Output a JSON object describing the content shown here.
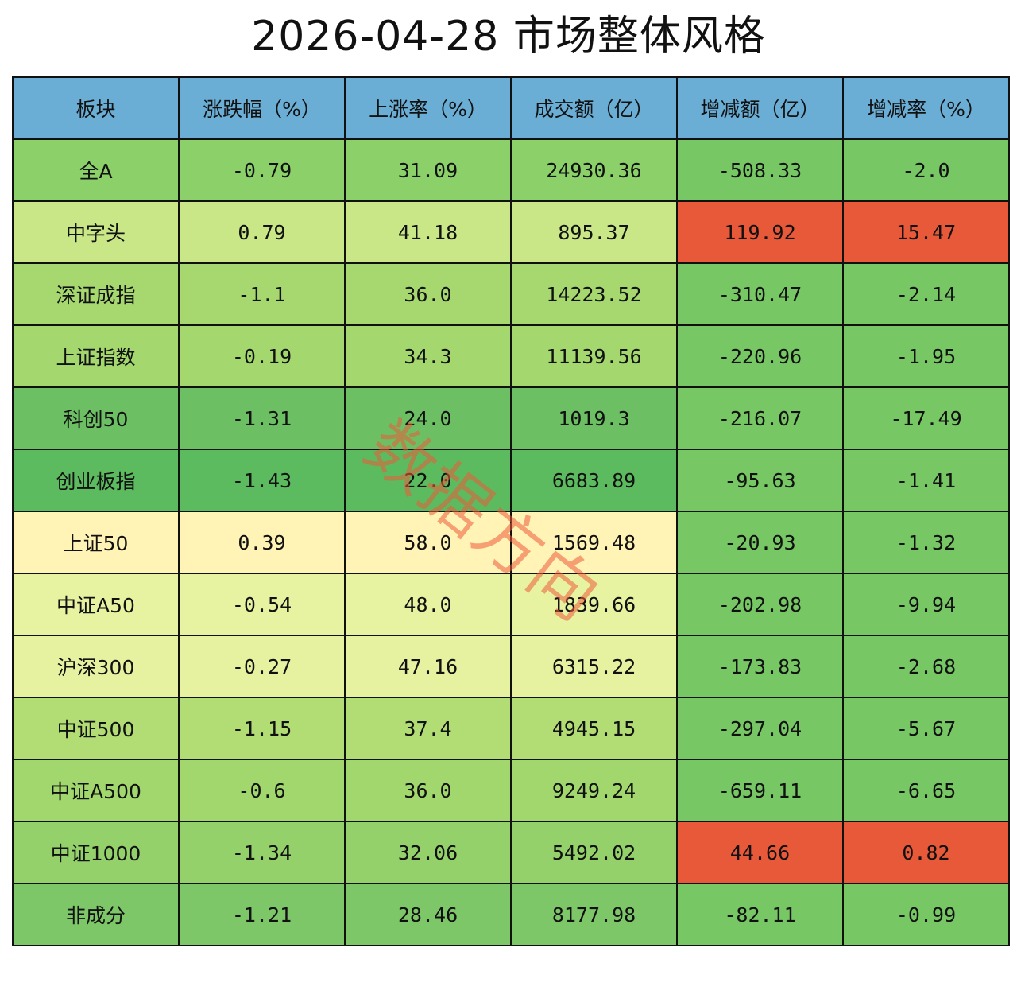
{
  "title": "2026-04-28 市场整体风格",
  "watermark": "数据方向",
  "colors": {
    "header": "#6aaed6",
    "green_dark": "#5cbb5e",
    "green_mid": "#7ec768",
    "green_light": "#a9d870",
    "green_pale": "#c8e786",
    "yellow_green": "#e6f29f",
    "yellow": "#fff4b6",
    "red": "#e8593a"
  },
  "chart_data": {
    "type": "table",
    "columns": [
      "板块",
      "涨跌幅（%）",
      "上涨率（%）",
      "成交额（亿）",
      "增减额（亿）",
      "增减率（%）"
    ],
    "rows": [
      [
        "全A",
        "-0.79",
        "31.09",
        "24930.36",
        "-508.33",
        "-2.0"
      ],
      [
        "中字头",
        "0.79",
        "41.18",
        "895.37",
        "119.92",
        "15.47"
      ],
      [
        "深证成指",
        "-1.1",
        "36.0",
        "14223.52",
        "-310.47",
        "-2.14"
      ],
      [
        "上证指数",
        "-0.19",
        "34.3",
        "11139.56",
        "-220.96",
        "-1.95"
      ],
      [
        "科创50",
        "-1.31",
        "24.0",
        "1019.3",
        "-216.07",
        "-17.49"
      ],
      [
        "创业板指",
        "-1.43",
        "22.0",
        "6683.89",
        "-95.63",
        "-1.41"
      ],
      [
        "上证50",
        "0.39",
        "58.0",
        "1569.48",
        "-20.93",
        "-1.32"
      ],
      [
        "中证A50",
        "-0.54",
        "48.0",
        "1839.66",
        "-202.98",
        "-9.94"
      ],
      [
        "沪深300",
        "-0.27",
        "47.16",
        "6315.22",
        "-173.83",
        "-2.68"
      ],
      [
        "中证500",
        "-1.15",
        "37.4",
        "4945.15",
        "-297.04",
        "-5.67"
      ],
      [
        "中证A500",
        "-0.6",
        "36.0",
        "9249.24",
        "-659.11",
        "-6.65"
      ],
      [
        "中证1000",
        "-1.34",
        "32.06",
        "5492.02",
        "44.66",
        "0.82"
      ],
      [
        "非成分",
        "-1.21",
        "28.46",
        "8177.98",
        "-82.11",
        "-0.99"
      ]
    ],
    "row_colors": [
      [
        "#8cd06a",
        "#8cd06a",
        "#8cd06a",
        "#8cd06a",
        "#78c765",
        "#78c765"
      ],
      [
        "#c9e787",
        "#c9e787",
        "#c9e787",
        "#c9e787",
        "#e8593a",
        "#e8593a"
      ],
      [
        "#a6d86f",
        "#a6d86f",
        "#a6d86f",
        "#a6d86f",
        "#78c765",
        "#78c765"
      ],
      [
        "#a4d86f",
        "#a4d86f",
        "#a4d86f",
        "#a4d86f",
        "#78c765",
        "#78c765"
      ],
      [
        "#6cc063",
        "#6cc063",
        "#6cc063",
        "#6cc063",
        "#78c765",
        "#78c765"
      ],
      [
        "#5cbb5e",
        "#5cbb5e",
        "#5cbb5e",
        "#5cbb5e",
        "#78c765",
        "#78c765"
      ],
      [
        "#fff4b6",
        "#fff4b6",
        "#fff4b6",
        "#fff4b6",
        "#78c765",
        "#78c765"
      ],
      [
        "#e7f3a1",
        "#e7f3a1",
        "#e7f3a1",
        "#e7f3a1",
        "#78c765",
        "#78c765"
      ],
      [
        "#e6f29f",
        "#e6f29f",
        "#e6f29f",
        "#e6f29f",
        "#78c765",
        "#78c765"
      ],
      [
        "#b2dc74",
        "#b2dc74",
        "#b2dc74",
        "#b2dc74",
        "#78c765",
        "#78c765"
      ],
      [
        "#a2d76e",
        "#a2d76e",
        "#a2d76e",
        "#a2d76e",
        "#78c765",
        "#78c765"
      ],
      [
        "#95d16b",
        "#95d16b",
        "#95d16b",
        "#95d16b",
        "#e8593a",
        "#e8593a"
      ],
      [
        "#7ec768",
        "#7ec768",
        "#7ec768",
        "#7ec768",
        "#78c765",
        "#78c765"
      ]
    ]
  }
}
